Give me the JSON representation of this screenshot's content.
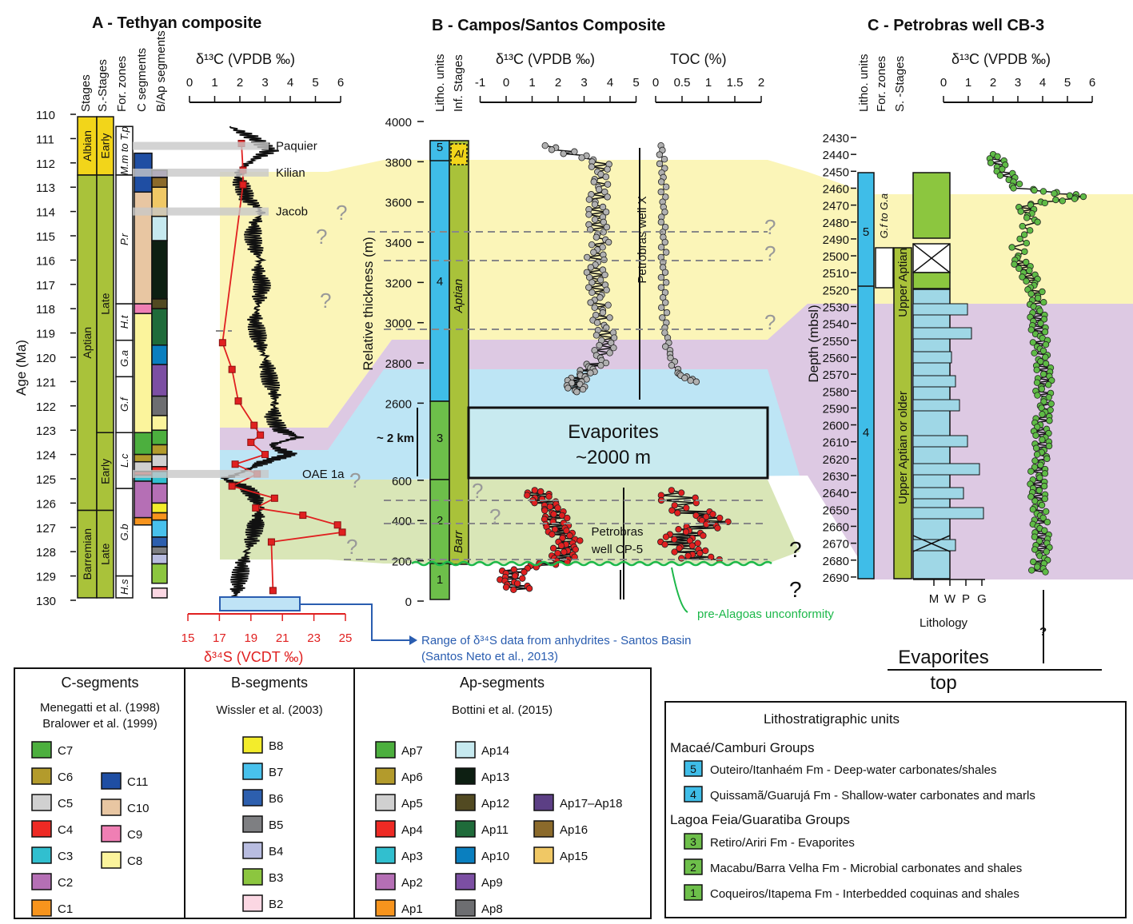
{
  "panelA": {
    "title": "A - Tethyan composite",
    "col_headers": [
      "Stages",
      "S.-Stages",
      "For. zones",
      "C segments",
      "B/Ap segments"
    ],
    "age_label": "Age (Ma)",
    "age_ticks": [
      110,
      111,
      112,
      113,
      114,
      115,
      116,
      117,
      118,
      119,
      120,
      121,
      122,
      123,
      124,
      125,
      126,
      127,
      128,
      129,
      130
    ],
    "stages": [
      {
        "name": "Albian",
        "from": 110.1,
        "to": 112.5,
        "color": "#f2d51a"
      },
      {
        "name": "Aptian",
        "from": 112.5,
        "to": 126.3,
        "color": "#a9c23a"
      },
      {
        "name": "Barremian",
        "from": 126.3,
        "to": 129.9,
        "color": "#a9c23a"
      }
    ],
    "substages": [
      {
        "name": "Early",
        "from": 110.1,
        "to": 112.5,
        "color": "#f2d51a"
      },
      {
        "name": "Late",
        "from": 112.5,
        "to": 123.1,
        "color": "#a9c23a"
      },
      {
        "name": "Early",
        "from": 123.1,
        "to": 126.3,
        "color": "#a9c23a"
      },
      {
        "name": "Late",
        "from": 126.3,
        "to": 129.9,
        "color": "#a9c23a"
      }
    ],
    "forzones": [
      {
        "name": "M.m to T.p",
        "from": 110.5,
        "to": 112.5
      },
      {
        "name": "P.r",
        "from": 112.5,
        "to": 117.8
      },
      {
        "name": "H.t",
        "from": 117.8,
        "to": 119.3
      },
      {
        "name": "G.a",
        "from": 119.3,
        "to": 120.8
      },
      {
        "name": "G.f",
        "from": 120.8,
        "to": 123.1
      },
      {
        "name": "L.c",
        "from": 123.1,
        "to": 125.4
      },
      {
        "name": "G.b",
        "from": 125.4,
        "to": 129.0
      },
      {
        "name": "H.s",
        "from": 129.0,
        "to": 129.9
      }
    ],
    "isotope_axis_label": "δ¹³C (VPDB ‰)",
    "isotope_ticks": [
      0,
      1,
      2,
      3,
      4,
      5,
      6
    ],
    "sulfur_axis_label": "δ³⁴S (VCDT ‰)",
    "sulfur_ticks": [
      15,
      17,
      19,
      21,
      23,
      25
    ],
    "events": [
      "Paquier",
      "Kilian",
      "Jacob",
      "OAE 1a"
    ]
  },
  "panelB": {
    "title": "B - Campos/Santos Composite",
    "col_headers": [
      "Litho. units",
      "Inf. Stages"
    ],
    "y_label": "Relative thickness (m)",
    "y_ticks": [
      0,
      200,
      400,
      600,
      2600,
      2800,
      3000,
      3200,
      3400,
      3600,
      3800,
      4000
    ],
    "units": [
      "1",
      "2",
      "3",
      "4",
      "5"
    ],
    "inf_stages": [
      "Al",
      "Aptian",
      "Barr"
    ],
    "c13_label": "δ¹³C (VPDB ‰)",
    "c13_ticks": [
      -1,
      0,
      1,
      2,
      3,
      4,
      5
    ],
    "toc_label": "TOC (%)",
    "toc_ticks": [
      "0",
      "0.5",
      "1",
      "1.5",
      "2"
    ],
    "evaporites_text": [
      "Evaporites",
      "~2000 m"
    ],
    "km_label": "~ 2 km",
    "wellX": "Petrobras well X",
    "wellCP5": [
      "Petrobras",
      "well CP-5"
    ],
    "unconformity": "pre-Alagoas unconformity",
    "range_note": [
      "Range of δ³⁴S data from anhydrites - Santos Basin",
      "(Santos Neto et al., 2013)"
    ],
    "question": "?"
  },
  "panelC": {
    "title": "C - Petrobras well CB-3",
    "col_headers": [
      "Litho. units",
      "For. zones",
      "S. -Stages"
    ],
    "y_label": "Depth (mbsl)",
    "depth_ticks": [
      2430,
      2440,
      2450,
      2460,
      2470,
      2480,
      2490,
      2500,
      2510,
      2520,
      2530,
      2540,
      2550,
      2560,
      2570,
      2580,
      2590,
      2600,
      2610,
      2620,
      2630,
      2640,
      2650,
      2660,
      2670,
      2680,
      2690
    ],
    "c13_label": "δ¹³C (VPDB ‰)",
    "c13_ticks": [
      0,
      1,
      2,
      3,
      4,
      5,
      6
    ],
    "units": [
      "5",
      "4"
    ],
    "zone": "G.f to G.a",
    "substages": [
      "Upper Aptian",
      "Upper Aptian or older"
    ],
    "lith_ticks": [
      "M",
      "W",
      "P",
      "G"
    ],
    "lith_label": "Lithology",
    "evap_top": [
      "Evaporites",
      "top"
    ]
  },
  "legend": {
    "c_title": "C-segments",
    "c_refs": [
      "Menegatti et al. (1998)",
      "Bralower et al. (1999)"
    ],
    "c_items": [
      {
        "label": "C7",
        "color": "#4caf3e"
      },
      {
        "label": "C6",
        "color": "#b39b2c"
      },
      {
        "label": "C5",
        "color": "#d0d0d0"
      },
      {
        "label": "C4",
        "color": "#ee2a24"
      },
      {
        "label": "C3",
        "color": "#31bfcf"
      },
      {
        "label": "C2",
        "color": "#b56fb5"
      },
      {
        "label": "C1",
        "color": "#f7941d"
      },
      {
        "label": "C11",
        "color": "#1f4ea3"
      },
      {
        "label": "C10",
        "color": "#e8c6a2"
      },
      {
        "label": "C9",
        "color": "#ef7fb4"
      },
      {
        "label": "C8",
        "color": "#fbf49c"
      }
    ],
    "b_title": "B-segments",
    "b_refs": [
      "Wissler et al. (2003)"
    ],
    "b_items": [
      {
        "label": "B8",
        "color": "#f3ec2b"
      },
      {
        "label": "B7",
        "color": "#48c1ec"
      },
      {
        "label": "B6",
        "color": "#2d5fae"
      },
      {
        "label": "B5",
        "color": "#7e7f82"
      },
      {
        "label": "B4",
        "color": "#b8bce0"
      },
      {
        "label": "B3",
        "color": "#8cc63f"
      },
      {
        "label": "B2",
        "color": "#fbd7e3"
      }
    ],
    "ap_title": "Ap-segments",
    "ap_refs": [
      "Bottini et al. (2015)"
    ],
    "ap_items": [
      {
        "label": "Ap7",
        "color": "#4caf3e"
      },
      {
        "label": "Ap6",
        "color": "#b39b2c"
      },
      {
        "label": "Ap5",
        "color": "#d0d0d0"
      },
      {
        "label": "Ap4",
        "color": "#ee2a24"
      },
      {
        "label": "Ap3",
        "color": "#31bfcf"
      },
      {
        "label": "Ap2",
        "color": "#b56fb5"
      },
      {
        "label": "Ap1",
        "color": "#f7941d"
      },
      {
        "label": "Ap14",
        "color": "#c6e9ef"
      },
      {
        "label": "Ap13",
        "color": "#0d1f12"
      },
      {
        "label": "Ap12",
        "color": "#524a22"
      },
      {
        "label": "Ap11",
        "color": "#1f6b3a"
      },
      {
        "label": "Ap10",
        "color": "#0a7fbf"
      },
      {
        "label": "Ap9",
        "color": "#7c4fa3"
      },
      {
        "label": "Ap8",
        "color": "#6d6e71"
      },
      {
        "label": "Ap17–Ap18",
        "color": "#5c3f85"
      },
      {
        "label": "Ap16",
        "color": "#8b6a2b"
      },
      {
        "label": "Ap15",
        "color": "#f0c865"
      }
    ],
    "litho_title": "Lithostratigraphic units",
    "litho_group1": "Macaé/Camburi Groups",
    "litho_group2": "Lagoa Feia/Guaratiba Groups",
    "litho_items": [
      {
        "num": "5",
        "label": "Outeiro/Itanhaém Fm - Deep-water carbonates/shales",
        "color": "#3fbde8"
      },
      {
        "num": "4",
        "label": "Quissamã/Guarujá Fm - Shallow-water carbonates and marls",
        "color": "#3fbde8"
      },
      {
        "num": "3",
        "label": "Retiro/Ariri Fm - Evaporites",
        "color": "#6dbf4a"
      },
      {
        "num": "2",
        "label": "Macabu/Barra Velha Fm - Microbial carbonates and shales",
        "color": "#6dbf4a"
      },
      {
        "num": "1",
        "label": "Coqueiros/Itapema Fm - Interbedded coquinas and shales",
        "color": "#6dbf4a"
      }
    ]
  },
  "chart_data": [
    {
      "type": "line",
      "panel": "A",
      "x_label": "δ13C (VPDB ‰)",
      "y_label": "Age (Ma)",
      "xlim": [
        0,
        6
      ],
      "ylim": [
        110,
        130
      ],
      "series": [
        {
          "age": [
            110.5,
            111,
            111.5,
            112,
            112.5,
            113,
            113.5,
            114,
            114.5,
            115,
            115.5,
            116,
            116.5,
            117,
            117.5,
            118,
            118.5,
            119,
            119.5,
            120,
            120.5,
            121,
            121.5,
            122,
            122.5,
            123,
            123.3,
            123.6,
            124,
            124.3,
            124.6,
            125,
            125.4,
            125.8,
            126.2,
            126.6,
            127,
            127.5,
            128,
            128.5,
            129,
            129.5,
            129.9
          ],
          "d13c": [
            1.6,
            2.6,
            3.2,
            2.3,
            1.9,
            2.1,
            2.3,
            2.9,
            2.6,
            2.5,
            2.6,
            2.8,
            2.7,
            2.9,
            2.8,
            2.7,
            2.6,
            2.7,
            2.8,
            3.0,
            3.1,
            3.2,
            3.4,
            3.4,
            3.3,
            3.6,
            4.3,
            3.2,
            4.0,
            3.0,
            2.4,
            1.4,
            2.3,
            2.6,
            2.8,
            2.7,
            2.6,
            2.5,
            2.3,
            2.1,
            2.0,
            1.9,
            1.8
          ]
        }
      ]
    },
    {
      "type": "line",
      "panel": "A",
      "x_label": "δ34S (VCDT ‰)",
      "y_label": "Age (Ma)",
      "xlim": [
        15,
        25
      ],
      "series": [
        {
          "age": [
            111.2,
            112.3,
            112.9,
            119.4,
            120.5,
            121.8,
            122.8,
            123.2,
            123.5,
            124,
            124.4,
            124.8,
            125.3,
            125.8,
            126.2,
            126.5,
            126.9,
            127.2,
            127.6,
            129.6
          ],
          "d34s": [
            18.4,
            18.5,
            18.5,
            17.2,
            17.8,
            18.2,
            19.2,
            19.6,
            19.0,
            19.9,
            18.0,
            19.4,
            17.8,
            20.5,
            19.3,
            22.3,
            24.5,
            24.8,
            20.3,
            20.4
          ]
        }
      ]
    },
    {
      "type": "scatter",
      "panel": "B",
      "x_label": "δ13C (VPDB ‰)",
      "y_label": "Relative thickness (m)",
      "xlim": [
        -1,
        5
      ],
      "series": [
        {
          "thickness": [
            3880,
            3800,
            3700,
            3600,
            3500,
            3400,
            3300,
            3200,
            3100,
            3000,
            2900,
            2800,
            2750,
            2700,
            2650
          ],
          "d13c": [
            1.5,
            3.6,
            3.7,
            3.5,
            3.5,
            3.6,
            3.4,
            3.5,
            3.6,
            3.7,
            3.9,
            3.5,
            3.0,
            2.6,
            2.8
          ]
        },
        {
          "thickness": [
            550,
            500,
            450,
            400,
            350,
            300,
            250,
            200,
            150,
            100,
            50
          ],
          "d13c": [
            1.1,
            1.4,
            1.9,
            1.9,
            2.0,
            2.4,
            2.2,
            2.2,
            0.3,
            0.2,
            0.6
          ]
        }
      ]
    },
    {
      "type": "scatter",
      "panel": "B",
      "x_label": "TOC (%)",
      "xlim": [
        0,
        2
      ],
      "series": [
        {
          "thickness": [
            3880,
            3700,
            3500,
            3300,
            3100,
            2900,
            2750,
            2700
          ],
          "toc": [
            0.1,
            0.15,
            0.15,
            0.15,
            0.15,
            0.2,
            0.4,
            0.8
          ]
        },
        {
          "thickness": [
            550,
            450,
            400,
            350,
            300,
            250,
            200
          ],
          "toc": [
            0.3,
            0.6,
            1.2,
            0.7,
            0.4,
            0.6,
            0.9
          ]
        }
      ]
    },
    {
      "type": "scatter",
      "panel": "C",
      "x_label": "δ13C (VPDB ‰)",
      "y_label": "Depth (mbsl)",
      "xlim": [
        0,
        6
      ],
      "ylim": [
        2430,
        2690
      ],
      "series": [
        {
          "depth": [
            2440,
            2450,
            2460,
            2465,
            2470,
            2480,
            2500,
            2510,
            2520,
            2530,
            2540,
            2550,
            2560,
            2570,
            2580,
            2590,
            2600,
            2610,
            2620,
            2630,
            2640,
            2650,
            2660,
            2670,
            2680,
            2688
          ],
          "d13c": [
            2.0,
            2.4,
            3.1,
            5.7,
            3.3,
            3.5,
            2.9,
            3.4,
            3.7,
            3.8,
            3.8,
            3.9,
            3.9,
            4.1,
            4.0,
            4.2,
            3.9,
            4.0,
            3.9,
            3.8,
            3.8,
            3.9,
            3.9,
            4.0,
            3.9,
            3.8
          ]
        }
      ]
    }
  ]
}
